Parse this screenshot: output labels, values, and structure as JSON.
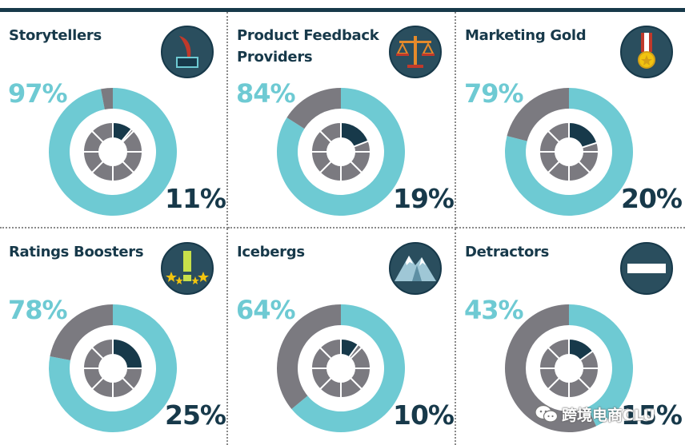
{
  "chart_data": [
    {
      "type": "pie",
      "title": "Storytellers",
      "outer_percent": "97%",
      "outer_value": 97,
      "inner_percent": "11%",
      "inner_value": 11,
      "icon": "quill-inkwell-icon"
    },
    {
      "type": "pie",
      "title": "Product Feedback Providers",
      "outer_percent": "84%",
      "outer_value": 84,
      "inner_percent": "19%",
      "inner_value": 19,
      "icon": "scales-icon"
    },
    {
      "type": "pie",
      "title": "Marketing Gold",
      "outer_percent": "79%",
      "outer_value": 79,
      "inner_percent": "20%",
      "inner_value": 20,
      "icon": "medal-icon"
    },
    {
      "type": "pie",
      "title": "Ratings Boosters",
      "outer_percent": "78%",
      "outer_value": 78,
      "inner_percent": "25%",
      "inner_value": 25,
      "icon": "exclamation-stars-icon"
    },
    {
      "type": "pie",
      "title": "Icebergs",
      "outer_percent": "64%",
      "outer_value": 64,
      "inner_percent": "10%",
      "inner_value": 10,
      "icon": "mountain-icon"
    },
    {
      "type": "pie",
      "title": "Detractors",
      "outer_percent": "43%",
      "outer_value": 43,
      "inner_percent": "15%",
      "inner_value": 15,
      "icon": "minus-bar-icon"
    }
  ],
  "colors": {
    "primary": "#6ecad3",
    "secondary": "#7b7a80",
    "dark": "#17394a",
    "icon_bg": "#2a4e5e"
  },
  "watermark": {
    "text": "跨境电商CLU"
  }
}
